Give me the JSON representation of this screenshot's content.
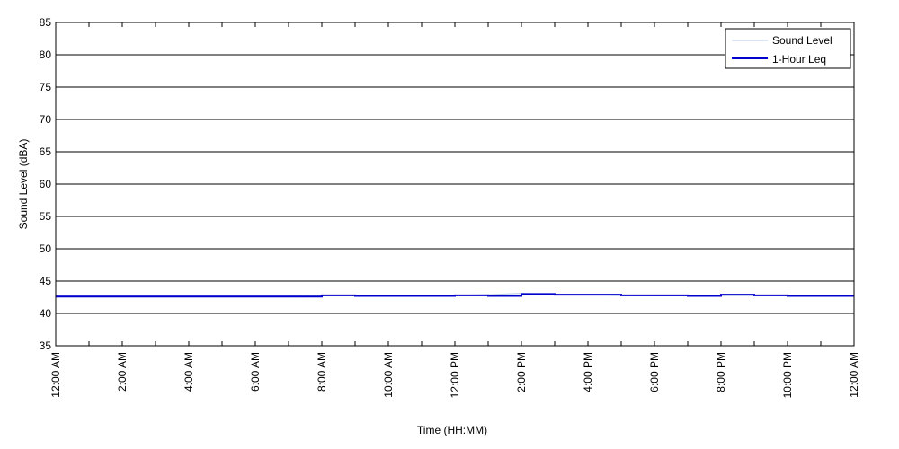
{
  "chart_data": {
    "type": "line",
    "xlabel": "Time (HH:MM)",
    "ylabel": "Sound Level (dBA)",
    "ylim": [
      35,
      85
    ],
    "yticks": [
      35,
      40,
      45,
      50,
      55,
      60,
      65,
      70,
      75,
      80,
      85
    ],
    "xlim_hours": [
      0,
      24
    ],
    "xtick_hours": [
      0,
      2,
      4,
      6,
      8,
      10,
      12,
      14,
      16,
      18,
      20,
      22,
      24
    ],
    "xtick_labels": [
      "12:00 AM",
      "2:00 AM",
      "4:00 AM",
      "6:00 AM",
      "8:00 AM",
      "10:00 AM",
      "12:00 PM",
      "2:00 PM",
      "4:00 PM",
      "6:00 PM",
      "8:00 PM",
      "10:00 PM",
      "12:00 AM"
    ],
    "minor_tick_hours": [
      1,
      3,
      5,
      7,
      9,
      11,
      13,
      15,
      17,
      19,
      21,
      23
    ],
    "grid": "horizontal",
    "legend_position": "top-right",
    "series": [
      {
        "name": "Sound Level",
        "color": "#b4c8e6",
        "x_hours": [
          0,
          1,
          2,
          3,
          4,
          5,
          6,
          7,
          8,
          9,
          10,
          11,
          12,
          13,
          14,
          15,
          16,
          17,
          18,
          19,
          20,
          21,
          22,
          23,
          24
        ],
        "values": [
          42.7,
          42.7,
          42.7,
          42.7,
          42.7,
          42.7,
          42.7,
          42.7,
          42.8,
          42.8,
          42.8,
          42.8,
          42.8,
          42.9,
          43.1,
          42.9,
          42.9,
          42.8,
          42.7,
          42.7,
          42.8,
          42.8,
          42.7,
          42.7,
          42.7
        ]
      },
      {
        "name": "1-Hour Leq",
        "color": "#0000cc",
        "step": true,
        "x_hours": [
          0,
          1,
          2,
          3,
          4,
          5,
          6,
          7,
          8,
          9,
          10,
          11,
          12,
          13,
          14,
          15,
          16,
          17,
          18,
          19,
          20,
          21,
          22,
          23
        ],
        "values": [
          42.6,
          42.6,
          42.6,
          42.6,
          42.6,
          42.6,
          42.6,
          42.6,
          42.8,
          42.7,
          42.7,
          42.7,
          42.8,
          42.7,
          43.0,
          42.9,
          42.9,
          42.8,
          42.8,
          42.7,
          42.9,
          42.8,
          42.7,
          42.7
        ]
      }
    ]
  }
}
